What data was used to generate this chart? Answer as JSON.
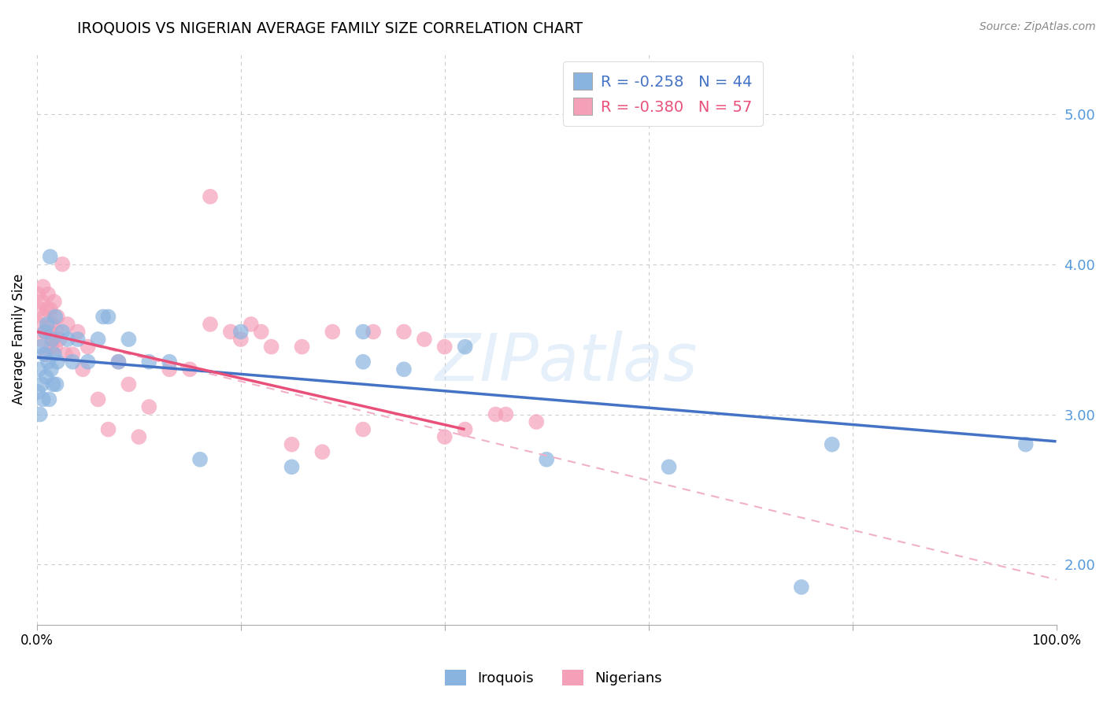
{
  "title": "IROQUOIS VS NIGERIAN AVERAGE FAMILY SIZE CORRELATION CHART",
  "source": "Source: ZipAtlas.com",
  "ylabel": "Average Family Size",
  "watermark": "ZIPatlas",
  "legend_iroquois": "R = -0.258   N = 44",
  "legend_nigerian": "R = -0.380   N = 57",
  "ylim": [
    1.6,
    5.4
  ],
  "xlim": [
    0.0,
    1.0
  ],
  "yticks": [
    2.0,
    3.0,
    4.0,
    5.0
  ],
  "xticks": [
    0.0,
    0.2,
    0.4,
    0.6,
    0.8,
    1.0
  ],
  "iroquois_color": "#8ab4e0",
  "nigerian_color": "#f4a0b8",
  "trend_iroquois_color": "#4472c4",
  "trend_nigerian_solid_color": "#e8507a",
  "trend_nigerian_dashed_color": "#f0b0c8",
  "background": "#ffffff",
  "grid_color": "#cccccc",
  "right_axis_color": "#5599dd",
  "iroquois_x": [
    0.001,
    0.002,
    0.003,
    0.004,
    0.005,
    0.006,
    0.007,
    0.008,
    0.009,
    0.01,
    0.011,
    0.012,
    0.013,
    0.014,
    0.015,
    0.016,
    0.017,
    0.018,
    0.019,
    0.02,
    0.025,
    0.03,
    0.035,
    0.04,
    0.05,
    0.06,
    0.065,
    0.07,
    0.08,
    0.09,
    0.11,
    0.13,
    0.16,
    0.2,
    0.25,
    0.32,
    0.42,
    0.5,
    0.62,
    0.75,
    0.32,
    0.36,
    0.78,
    0.97
  ],
  "iroquois_y": [
    3.15,
    3.3,
    3.0,
    3.45,
    3.2,
    3.1,
    3.4,
    3.55,
    3.25,
    3.6,
    3.35,
    3.1,
    4.05,
    3.3,
    3.5,
    3.2,
    3.4,
    3.65,
    3.2,
    3.35,
    3.55,
    3.5,
    3.35,
    3.5,
    3.35,
    3.5,
    3.65,
    3.65,
    3.35,
    3.5,
    3.35,
    3.35,
    2.7,
    3.55,
    2.65,
    3.35,
    3.45,
    2.7,
    2.65,
    1.85,
    3.55,
    3.3,
    2.8,
    2.8
  ],
  "nigerian_x": [
    0.001,
    0.002,
    0.003,
    0.004,
    0.005,
    0.006,
    0.007,
    0.008,
    0.009,
    0.01,
    0.011,
    0.012,
    0.013,
    0.014,
    0.015,
    0.016,
    0.017,
    0.018,
    0.019,
    0.02,
    0.022,
    0.025,
    0.028,
    0.03,
    0.035,
    0.04,
    0.045,
    0.05,
    0.06,
    0.07,
    0.08,
    0.09,
    0.1,
    0.11,
    0.13,
    0.15,
    0.17,
    0.2,
    0.22,
    0.25,
    0.28,
    0.32,
    0.36,
    0.4,
    0.45,
    0.17,
    0.19,
    0.21,
    0.23,
    0.42,
    0.46,
    0.49,
    0.4,
    0.38,
    0.33,
    0.29,
    0.26
  ],
  "nigerian_y": [
    3.8,
    3.6,
    3.7,
    3.5,
    3.75,
    3.85,
    3.65,
    3.55,
    3.4,
    3.7,
    3.8,
    3.55,
    3.7,
    3.45,
    3.6,
    3.5,
    3.75,
    3.45,
    3.55,
    3.65,
    3.5,
    4.0,
    3.4,
    3.6,
    3.4,
    3.55,
    3.3,
    3.45,
    3.1,
    2.9,
    3.35,
    3.2,
    2.85,
    3.05,
    3.3,
    3.3,
    4.45,
    3.5,
    3.55,
    2.8,
    2.75,
    2.9,
    3.55,
    2.85,
    3.0,
    3.6,
    3.55,
    3.6,
    3.45,
    2.9,
    3.0,
    2.95,
    3.45,
    3.5,
    3.55,
    3.55,
    3.45
  ],
  "trend_iroquois_x0": 0.0,
  "trend_iroquois_y0": 3.38,
  "trend_iroquois_x1": 1.0,
  "trend_iroquois_y1": 2.82,
  "trend_nigerian_solid_x0": 0.0,
  "trend_nigerian_solid_y0": 3.55,
  "trend_nigerian_solid_x1": 0.42,
  "trend_nigerian_solid_y1": 2.9,
  "trend_nigerian_dashed_x0": 0.0,
  "trend_nigerian_dashed_y0": 3.55,
  "trend_nigerian_dashed_x1": 1.0,
  "trend_nigerian_dashed_y1": 1.9
}
